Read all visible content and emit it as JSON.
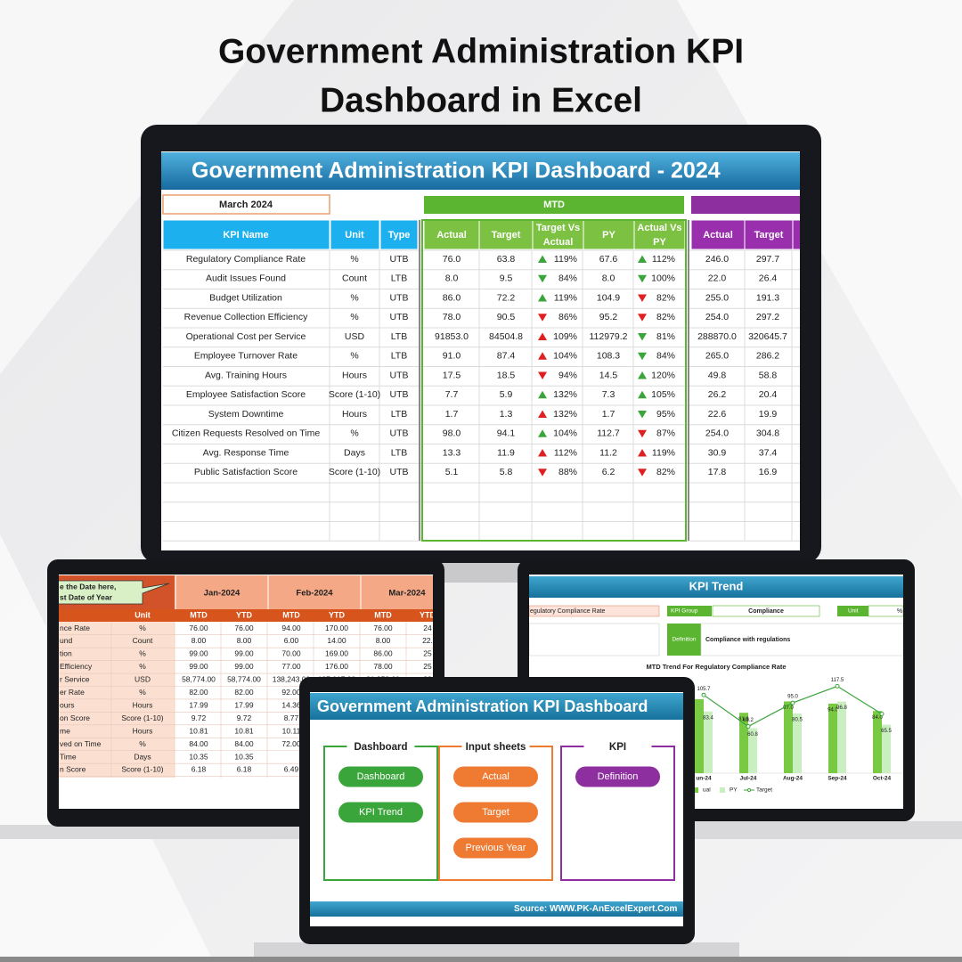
{
  "title_lines": [
    "Government Administration KPI",
    "Dashboard in Excel"
  ],
  "main": {
    "banner": "Government Administration KPI Dashboard - 2024",
    "month": "March 2024",
    "mtd_label": "MTD",
    "good_color": "#3aa53a",
    "bad_color": "#e02020",
    "headers": {
      "kpi": "KPI Name",
      "unit": "Unit",
      "type": "Type",
      "mtd": [
        [
          "Actual"
        ],
        [
          "Target"
        ],
        [
          "Target Vs",
          "Actual"
        ],
        [
          "PY"
        ],
        [
          "Actual Vs",
          "PY"
        ]
      ],
      "ytd": [
        "Actual",
        "Target",
        "A"
      ]
    },
    "rows": [
      [
        "Regulatory Compliance Rate",
        "%",
        "UTB",
        "76.0",
        "63.8",
        "up",
        true,
        "119%",
        "67.6",
        "up",
        true,
        "112%",
        "246.0",
        "297.7"
      ],
      [
        "Audit Issues Found",
        "Count",
        "LTB",
        "8.0",
        "9.5",
        "down",
        true,
        "84%",
        "8.0",
        "down",
        true,
        "100%",
        "22.0",
        "26.4"
      ],
      [
        "Budget Utilization",
        "%",
        "UTB",
        "86.0",
        "72.2",
        "up",
        true,
        "119%",
        "104.9",
        "down",
        false,
        "82%",
        "255.0",
        "191.3"
      ],
      [
        "Revenue Collection Efficiency",
        "%",
        "UTB",
        "78.0",
        "90.5",
        "down",
        false,
        "86%",
        "95.2",
        "down",
        false,
        "82%",
        "254.0",
        "297.2"
      ],
      [
        "Operational Cost per Service",
        "USD",
        "LTB",
        "91853.0",
        "84504.8",
        "up",
        false,
        "109%",
        "112979.2",
        "down",
        true,
        "81%",
        "288870.0",
        "320645.7"
      ],
      [
        "Employee Turnover Rate",
        "%",
        "LTB",
        "91.0",
        "87.4",
        "up",
        false,
        "104%",
        "108.3",
        "down",
        true,
        "84%",
        "265.0",
        "286.2"
      ],
      [
        "Avg. Training Hours",
        "Hours",
        "UTB",
        "17.5",
        "18.5",
        "down",
        false,
        "94%",
        "14.5",
        "up",
        true,
        "120%",
        "49.8",
        "58.8"
      ],
      [
        "Employee Satisfaction Score",
        "Score (1-10)",
        "UTB",
        "7.7",
        "5.9",
        "up",
        true,
        "132%",
        "7.3",
        "up",
        true,
        "105%",
        "26.2",
        "20.4"
      ],
      [
        "System Downtime",
        "Hours",
        "LTB",
        "1.7",
        "1.3",
        "up",
        false,
        "132%",
        "1.7",
        "down",
        true,
        "95%",
        "22.6",
        "19.9"
      ],
      [
        "Citizen Requests Resolved on Time",
        "%",
        "UTB",
        "98.0",
        "94.1",
        "up",
        true,
        "104%",
        "112.7",
        "down",
        false,
        "87%",
        "254.0",
        "304.8"
      ],
      [
        "Avg. Response Time",
        "Days",
        "LTB",
        "13.3",
        "11.9",
        "up",
        false,
        "112%",
        "11.2",
        "up",
        false,
        "119%",
        "30.9",
        "37.4"
      ],
      [
        "Public Satisfaction Score",
        "Score (1-10)",
        "UTB",
        "5.1",
        "5.8",
        "down",
        false,
        "88%",
        "6.2",
        "down",
        false,
        "82%",
        "17.8",
        "16.9"
      ]
    ]
  },
  "input": {
    "callout": [
      "e the Date here,",
      "st Date of Year"
    ],
    "months": [
      "Jan-2024",
      "Feb-2024",
      "Mar-2024"
    ],
    "unit_header": "Unit",
    "sub": [
      "MTD",
      "YTD",
      "MTD",
      "YTD",
      "MTD",
      "YTD"
    ],
    "rows": [
      [
        "nce Rate",
        "%",
        "76.00",
        "76.00",
        "94.00",
        "170.00",
        "76.00",
        "24"
      ],
      [
        "und",
        "Count",
        "8.00",
        "8.00",
        "6.00",
        "14.00",
        "8.00",
        "22."
      ],
      [
        "tion",
        "%",
        "99.00",
        "99.00",
        "70.00",
        "169.00",
        "86.00",
        "25"
      ],
      [
        "Efficiency",
        "%",
        "99.00",
        "99.00",
        "77.00",
        "176.00",
        "78.00",
        "25"
      ],
      [
        "r Service",
        "USD",
        "58,774.00",
        "58,774.00",
        "138,243.00",
        "197,017.00",
        "91,853.00",
        "28"
      ],
      [
        "er Rate",
        "%",
        "82.00",
        "82.00",
        "92.00"
      ],
      [
        "ours",
        "Hours",
        "17.99",
        "17.99",
        "14.36"
      ],
      [
        "on Score",
        "Score (1-10)",
        "9.72",
        "9.72",
        "8.77"
      ],
      [
        "me",
        "Hours",
        "10.81",
        "10.81",
        "10.11"
      ],
      [
        "ved on Time",
        "%",
        "84.00",
        "84.00",
        "72.00"
      ],
      [
        "Time",
        "Days",
        "10.35",
        "10.35"
      ],
      [
        "n Score",
        "Score (1-10)",
        "6.18",
        "6.18",
        "6.49"
      ]
    ]
  },
  "trend": {
    "title": "KPI Trend",
    "kpi": "egulatory Compliance Rate",
    "group_label": "KPI Group",
    "group": "Compliance",
    "unit_label": "Unit",
    "unit": "%",
    "def_label": "Definition",
    "definition": "Compliance with regulations",
    "chart_data": {
      "type": "bar",
      "title": "MTD Trend For Regulatory Compliance Rate",
      "categories": [
        "un-24",
        "Jul-24",
        "Aug-24",
        "Sep-24",
        "Oct-24"
      ],
      "ylim": [
        0,
        130
      ],
      "series": [
        {
          "name": "ual",
          "color": "#7ac943",
          "values": [
            100,
            81.6,
            97.0,
            94.0,
            84.0
          ],
          "value_labels": [
            null,
            "81.6",
            "97.0",
            "94.0",
            "84.0"
          ]
        },
        {
          "name": "PY",
          "color": "#c9efc0",
          "values": [
            83.4,
            60.8,
            80.5,
            96.8,
            65.5
          ],
          "value_labels": [
            "83.4",
            "60.8",
            "80.5",
            "96.8",
            "65.5"
          ]
        },
        {
          "name": "Target",
          "type": "line",
          "color": "#3aa53a",
          "values": [
            105.7,
            63.2,
            95.0,
            117.5,
            80
          ],
          "value_labels": [
            "105.7",
            "63.2",
            "95.0",
            "117.5",
            null
          ]
        }
      ]
    }
  },
  "front": {
    "banner": "Government Administration KPI Dashboard",
    "sections": [
      {
        "title": "Dashboard",
        "color": "#3aa53a",
        "buttons": [
          "Dashboard",
          "KPI Trend"
        ]
      },
      {
        "title": "Input sheets",
        "color": "#ef7a32",
        "buttons": [
          "Actual",
          "Target",
          "Previous Year"
        ]
      },
      {
        "title": "KPI",
        "color": "#8e2fa0",
        "buttons": [
          "Definition"
        ]
      }
    ],
    "footer": "Source: WWW.PK-AnExcelExpert.Com"
  }
}
